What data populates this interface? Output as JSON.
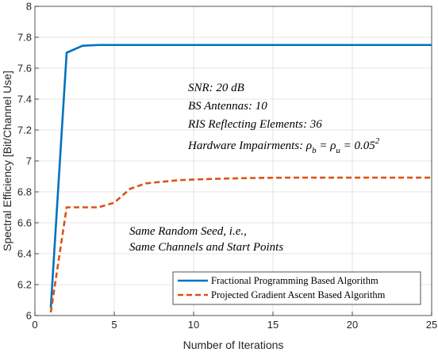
{
  "chart_data": {
    "type": "line",
    "xlabel": "Number of Iterations",
    "ylabel": "Spectral Efficiency [Bit/Channel Use]",
    "xlim": [
      0,
      25
    ],
    "ylim": [
      6,
      8
    ],
    "xticks": [
      0,
      5,
      10,
      15,
      20,
      25
    ],
    "yticks": [
      6,
      6.2,
      6.4,
      6.6,
      6.8,
      7,
      7.2,
      7.4,
      7.6,
      7.8,
      8
    ],
    "ytick_labels": [
      "6",
      "6.2",
      "6.4",
      "6.6",
      "6.8",
      "7",
      "7.2",
      "7.4",
      "7.6",
      "7.8",
      "8"
    ],
    "grid": true,
    "legend_position": "bottom-right",
    "series": [
      {
        "name": "Fractional Programming Based Algorithm",
        "color": "#0072BD",
        "dash": "solid",
        "x": [
          1,
          2,
          3,
          4,
          5,
          6,
          7,
          8,
          9,
          10,
          11,
          12,
          13,
          14,
          15,
          16,
          17,
          18,
          19,
          20,
          21,
          22,
          23,
          24,
          25
        ],
        "y": [
          6.05,
          7.7,
          7.745,
          7.75,
          7.75,
          7.75,
          7.75,
          7.75,
          7.75,
          7.75,
          7.75,
          7.75,
          7.75,
          7.75,
          7.75,
          7.75,
          7.75,
          7.75,
          7.75,
          7.75,
          7.75,
          7.75,
          7.75,
          7.75,
          7.75
        ]
      },
      {
        "name": "Projected Gradient Ascent Based Algorithm",
        "color": "#D95319",
        "dash": "dashed",
        "x": [
          1,
          2,
          3,
          4,
          5,
          6,
          7,
          8,
          9,
          10,
          11,
          12,
          13,
          14,
          15,
          16,
          17,
          18,
          19,
          20,
          21,
          22,
          23,
          24,
          25
        ],
        "y": [
          6.02,
          6.7,
          6.7,
          6.7,
          6.73,
          6.82,
          6.855,
          6.865,
          6.875,
          6.88,
          6.883,
          6.886,
          6.888,
          6.89,
          6.891,
          6.892,
          6.892,
          6.892,
          6.892,
          6.892,
          6.892,
          6.892,
          6.892,
          6.892,
          6.892
        ]
      }
    ],
    "annotations": {
      "snr": "SNR: 20 dB",
      "bs": "BS Antennas: 10",
      "ris": "RIS Reflecting Elements: 36",
      "hw_prefix": "Hardware Impairments: ",
      "hw_rho": "ρ",
      "hw_sub_b": "b",
      "hw_eq": " = ",
      "hw_sub_u": "u",
      "hw_val": " = 0.05",
      "hw_sup": "2",
      "seed_line1": "Same Random Seed, i.e.,",
      "seed_line2": "Same Channels and Start Points"
    }
  }
}
